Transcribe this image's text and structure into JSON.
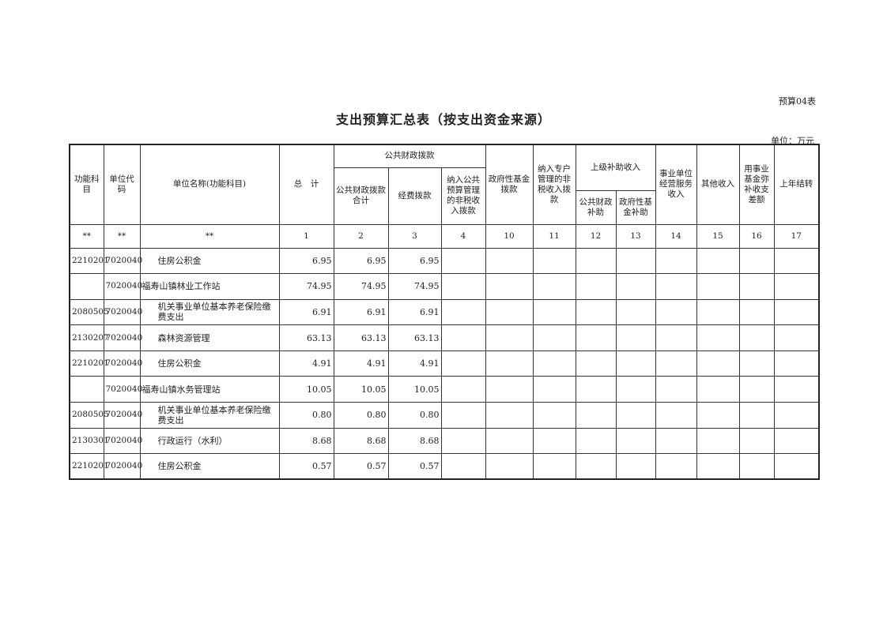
{
  "form_number": "预算04表",
  "title": "支出预算汇总表（按支出资金来源）",
  "unit": "单位：万元",
  "headers": {
    "func_subject": "功能科目",
    "unit_code": "单位代码",
    "unit_name": "单位名称(功能科目)",
    "total": "总　计",
    "public_finance_group": "公共财政拨款",
    "public_finance_total": "公共财政拨款合计",
    "funding_allocation": "经费拨款",
    "nontax_public_budget": "纳入公共预算管理的非税收入拨款",
    "gov_fund": "政府性基金拨款",
    "nontax_special_account": "纳入专户管理的非税收入拨款",
    "superior_subsidy_group": "上级补助收入",
    "public_finance_subsidy": "公共财政补助",
    "gov_fund_subsidy": "政府性基金补助",
    "business_income": "事业单位经营服务收入",
    "other_income": "其他收入",
    "fund_offset": "用事业基金弥补收支差额",
    "carryover": "上年结转"
  },
  "number_row": [
    "**",
    "**",
    "**",
    "1",
    "2",
    "3",
    "4",
    "10",
    "11",
    "12",
    "13",
    "14",
    "15",
    "16",
    "17"
  ],
  "rows": [
    {
      "func": "2210201",
      "code": "7020040",
      "name": "住房公积金",
      "indent": true,
      "total": "6.95",
      "pf_total": "6.95",
      "funding": "6.95"
    },
    {
      "func": "",
      "code": "7020040",
      "name": "福寿山镇林业工作站",
      "indent": false,
      "total": "74.95",
      "pf_total": "74.95",
      "funding": "74.95"
    },
    {
      "func": "2080505",
      "code": "7020040",
      "name": "机关事业单位基本养老保险缴费支出",
      "indent": true,
      "total": "6.91",
      "pf_total": "6.91",
      "funding": "6.91"
    },
    {
      "func": "2130207",
      "code": "7020040",
      "name": "森林资源管理",
      "indent": true,
      "total": "63.13",
      "pf_total": "63.13",
      "funding": "63.13"
    },
    {
      "func": "2210201",
      "code": "7020040",
      "name": "住房公积金",
      "indent": true,
      "total": "4.91",
      "pf_total": "4.91",
      "funding": "4.91"
    },
    {
      "func": "",
      "code": "7020040",
      "name": "福寿山镇水务管理站",
      "indent": false,
      "total": "10.05",
      "pf_total": "10.05",
      "funding": "10.05"
    },
    {
      "func": "2080505",
      "code": "7020040",
      "name": "机关事业单位基本养老保险缴费支出",
      "indent": true,
      "total": "0.80",
      "pf_total": "0.80",
      "funding": "0.80"
    },
    {
      "func": "2130301",
      "code": "7020040",
      "name": "行政运行（水利）",
      "indent": true,
      "total": "8.68",
      "pf_total": "8.68",
      "funding": "8.68"
    },
    {
      "func": "2210201",
      "code": "7020040",
      "name": "住房公积金",
      "indent": true,
      "total": "0.57",
      "pf_total": "0.57",
      "funding": "0.57"
    }
  ]
}
